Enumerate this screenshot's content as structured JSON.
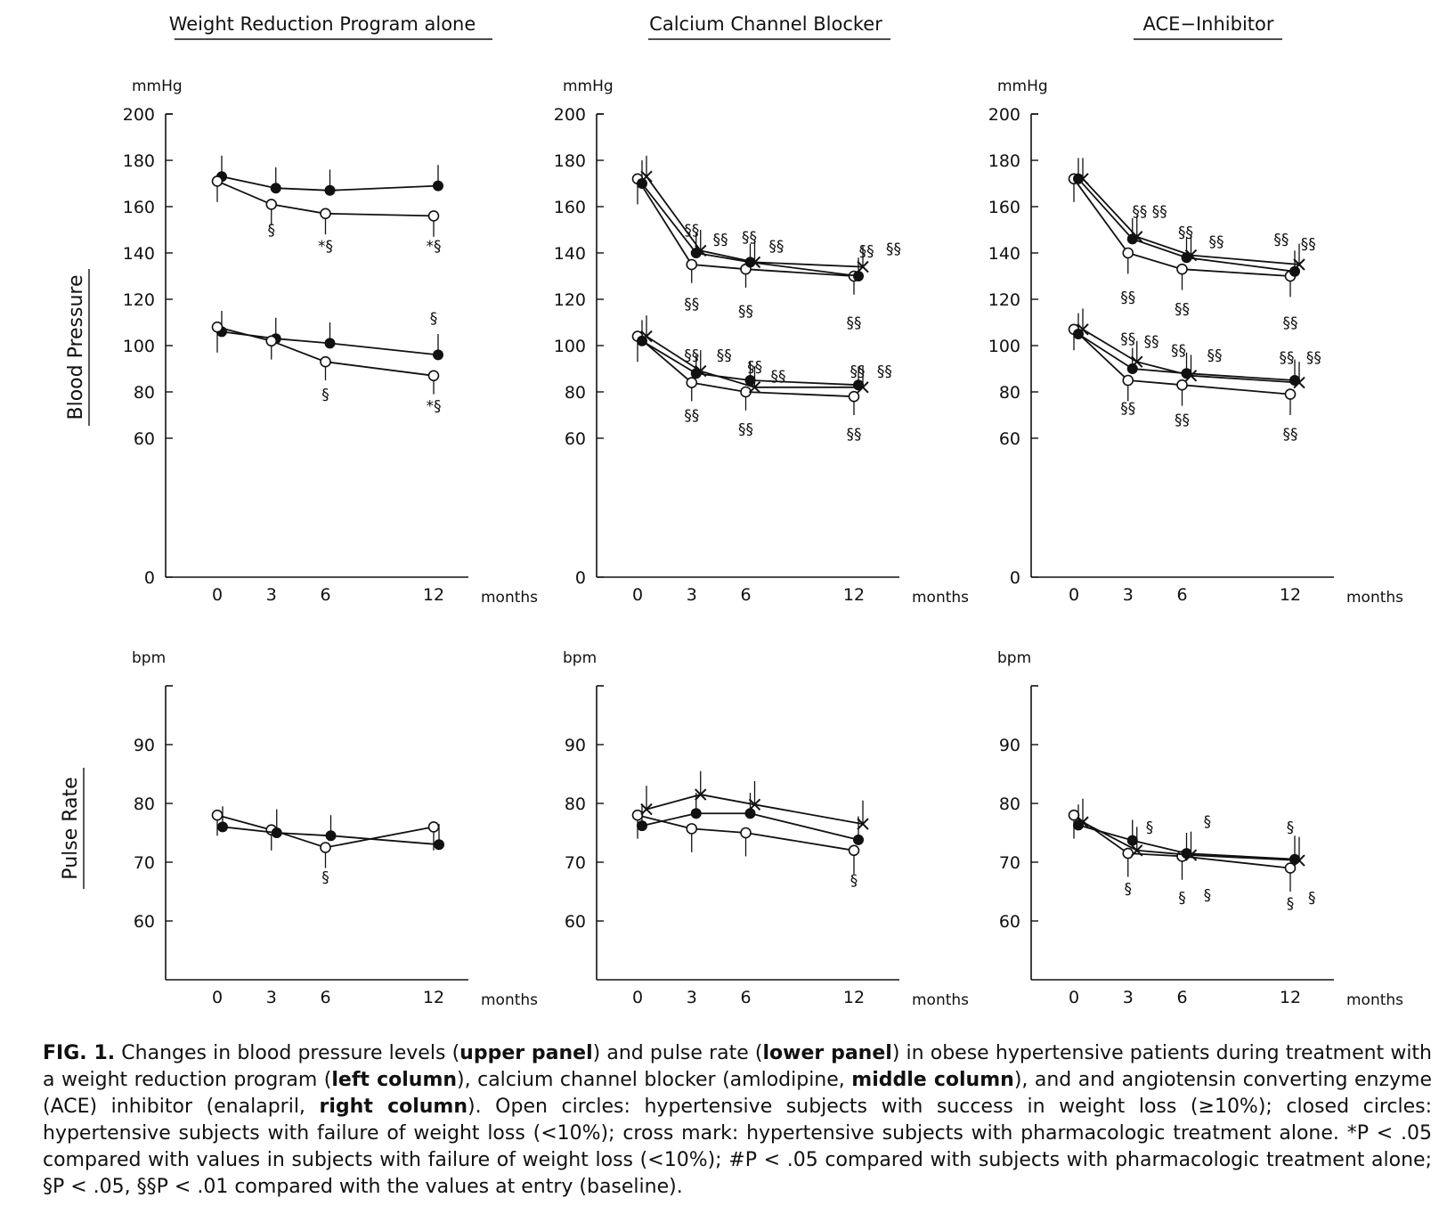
{
  "figure": {
    "column_titles": [
      "Weight Reduction Program alone",
      "Calcium Channel Blocker",
      "ACE−Inhibitor"
    ],
    "row_labels": {
      "upper": "Blood  Pressure",
      "lower": "Pulse  Rate"
    },
    "units": {
      "upper": "mmHg",
      "lower": "bpm"
    },
    "x_unit": "months"
  },
  "caption": {
    "label": "FIG. 1.",
    "s1": " Changes in blood pressure levels (",
    "b1": "upper panel",
    "s2": ") and pulse rate (",
    "b2": "lower panel",
    "s3": ") in obese hypertensive patients during treatment with a weight reduction program (",
    "b3": "left column",
    "s4": "), calcium channel blocker (amlodipine, ",
    "b4": "middle column",
    "s5": "), and and angiotensin converting enzyme (ACE) inhibitor (enalapril, ",
    "b5": "right column",
    "s6": "). Open circles: hypertensive subjects with success in weight loss (≥10%); closed circles: hypertensive subjects with failure of weight loss (<10%); cross mark: hypertensive subjects with pharmacologic treatment alone. *P < .05 compared with values in subjects with failure of weight loss (<10%); #P < .05 compared with subjects with pharmacologic treatment alone; §P < .05, §§P < .01 compared with the values at entry (baseline)."
  },
  "chart_data": [
    {
      "type": "line",
      "panel": "upper",
      "column": "Weight Reduction Program alone",
      "ylabel": "mmHg",
      "xlabel": "months",
      "ylim": [
        0,
        200
      ],
      "yticks": [
        0,
        60,
        80,
        100,
        120,
        140,
        160,
        180,
        200
      ],
      "xticks": [
        0,
        3,
        6,
        12
      ],
      "series": [
        {
          "marker": "closed-circle",
          "x": [
            0,
            3,
            6,
            12
          ],
          "y": [
            173,
            168,
            167,
            169
          ],
          "err": [
            9,
            9,
            9,
            9
          ]
        },
        {
          "marker": "open-circle",
          "x": [
            0,
            3,
            6,
            12
          ],
          "y": [
            171,
            161,
            157,
            156
          ],
          "err": [
            9,
            9,
            9,
            9
          ]
        },
        {
          "marker": "closed-circle",
          "x": [
            0,
            3,
            6,
            12
          ],
          "y": [
            106,
            103,
            101,
            96
          ],
          "err": [
            9,
            9,
            9,
            9
          ]
        },
        {
          "marker": "open-circle",
          "x": [
            0,
            3,
            6,
            12
          ],
          "y": [
            108,
            102,
            93,
            87
          ],
          "err": [
            11,
            8,
            8,
            8
          ]
        }
      ],
      "annotations": [
        {
          "text": "§",
          "x": 3,
          "y": 150
        },
        {
          "text": "*§",
          "x": 6,
          "y": 143
        },
        {
          "text": "*§",
          "x": 12,
          "y": 143
        },
        {
          "text": "§",
          "x": 12,
          "y": 112
        },
        {
          "text": "§",
          "x": 6,
          "y": 79
        },
        {
          "text": "*§",
          "x": 12,
          "y": 74
        }
      ]
    },
    {
      "type": "line",
      "panel": "upper",
      "column": "Calcium Channel Blocker",
      "ylabel": "mmHg",
      "xlabel": "months",
      "ylim": [
        0,
        200
      ],
      "yticks": [
        0,
        60,
        80,
        100,
        120,
        140,
        160,
        180,
        200
      ],
      "xticks": [
        0,
        3,
        6,
        12
      ],
      "series": [
        {
          "marker": "open-circle",
          "x": [
            0,
            3,
            6,
            12
          ],
          "y": [
            172,
            135,
            133,
            130
          ],
          "err": [
            11,
            8,
            8,
            8
          ]
        },
        {
          "marker": "closed-circle",
          "x": [
            0,
            3,
            6,
            12
          ],
          "y": [
            170,
            140,
            136,
            130
          ],
          "err": [
            10,
            9,
            8,
            8
          ]
        },
        {
          "marker": "cross",
          "x": [
            0,
            3,
            6,
            12
          ],
          "y": [
            173,
            141,
            136,
            134
          ],
          "err": [
            9,
            9,
            9,
            9
          ]
        },
        {
          "marker": "open-circle",
          "x": [
            0,
            3,
            6,
            12
          ],
          "y": [
            104,
            84,
            80,
            78
          ],
          "err": [
            11,
            8,
            8,
            8
          ]
        },
        {
          "marker": "closed-circle",
          "x": [
            0,
            3,
            6,
            12
          ],
          "y": [
            102,
            88,
            85,
            83
          ],
          "err": [
            9,
            8,
            8,
            8
          ]
        },
        {
          "marker": "cross",
          "x": [
            0,
            3,
            6,
            12
          ],
          "y": [
            104,
            89,
            82,
            82
          ],
          "err": [
            9,
            9,
            9,
            9
          ]
        }
      ],
      "annotations": [
        {
          "text": "§§",
          "x": 3,
          "y": 150
        },
        {
          "text": "§§",
          "x": 4.6,
          "y": 146
        },
        {
          "text": "§§",
          "x": 6.2,
          "y": 147
        },
        {
          "text": "§§",
          "x": 7.7,
          "y": 143
        },
        {
          "text": "§§",
          "x": 12.7,
          "y": 141
        },
        {
          "text": "§§",
          "x": 14.2,
          "y": 142
        },
        {
          "text": "§§",
          "x": 3,
          "y": 118
        },
        {
          "text": "§§",
          "x": 6,
          "y": 115
        },
        {
          "text": "§§",
          "x": 12,
          "y": 110
        },
        {
          "text": "§§",
          "x": 3,
          "y": 96
        },
        {
          "text": "§§",
          "x": 4.8,
          "y": 96
        },
        {
          "text": "§§",
          "x": 6.5,
          "y": 91
        },
        {
          "text": "§§",
          "x": 7.8,
          "y": 87
        },
        {
          "text": "§§",
          "x": 12.2,
          "y": 89
        },
        {
          "text": "§§",
          "x": 13.7,
          "y": 89
        },
        {
          "text": "§§",
          "x": 3,
          "y": 70
        },
        {
          "text": "§§",
          "x": 6,
          "y": 64
        },
        {
          "text": "§§",
          "x": 12,
          "y": 62
        }
      ]
    },
    {
      "type": "line",
      "panel": "upper",
      "column": "ACE−Inhibitor",
      "ylabel": "mmHg",
      "xlabel": "months",
      "ylim": [
        0,
        200
      ],
      "yticks": [
        0,
        60,
        80,
        100,
        120,
        140,
        160,
        180,
        200
      ],
      "xticks": [
        0,
        3,
        6,
        12
      ],
      "series": [
        {
          "marker": "open-circle",
          "x": [
            0,
            3,
            6,
            12
          ],
          "y": [
            172,
            140,
            133,
            130
          ],
          "err": [
            10,
            9,
            9,
            9
          ]
        },
        {
          "marker": "closed-circle",
          "x": [
            0,
            3,
            6,
            12
          ],
          "y": [
            172,
            146,
            138,
            132
          ],
          "err": [
            9,
            9,
            9,
            9
          ]
        },
        {
          "marker": "cross",
          "x": [
            0,
            3,
            6,
            12
          ],
          "y": [
            172,
            147,
            139,
            135
          ],
          "err": [
            9,
            9,
            9,
            9
          ]
        },
        {
          "marker": "open-circle",
          "x": [
            0,
            3,
            6,
            12
          ],
          "y": [
            107,
            85,
            83,
            79
          ],
          "err": [
            9,
            9,
            9,
            9
          ]
        },
        {
          "marker": "closed-circle",
          "x": [
            0,
            3,
            6,
            12
          ],
          "y": [
            105,
            90,
            88,
            85
          ],
          "err": [
            9,
            9,
            9,
            9
          ]
        },
        {
          "marker": "cross",
          "x": [
            0,
            3,
            6,
            12
          ],
          "y": [
            107,
            93,
            87,
            84
          ],
          "err": [
            9,
            9,
            9,
            9
          ]
        }
      ],
      "annotations": [
        {
          "text": "§§ §§",
          "x": 4.2,
          "y": 158
        },
        {
          "text": "§§",
          "x": 6.2,
          "y": 149
        },
        {
          "text": "§§",
          "x": 7.9,
          "y": 145
        },
        {
          "text": "§§",
          "x": 11.5,
          "y": 146
        },
        {
          "text": "§§",
          "x": 13,
          "y": 144
        },
        {
          "text": "§§",
          "x": 3,
          "y": 121
        },
        {
          "text": "§§",
          "x": 6,
          "y": 116
        },
        {
          "text": "§§",
          "x": 12,
          "y": 110
        },
        {
          "text": "§§",
          "x": 3,
          "y": 103
        },
        {
          "text": "§§",
          "x": 4.3,
          "y": 102
        },
        {
          "text": "§§",
          "x": 5.8,
          "y": 98
        },
        {
          "text": "§§",
          "x": 7.8,
          "y": 96
        },
        {
          "text": "§§",
          "x": 11.8,
          "y": 95
        },
        {
          "text": "§§",
          "x": 13.3,
          "y": 95
        },
        {
          "text": "§§",
          "x": 3,
          "y": 73
        },
        {
          "text": "§§",
          "x": 6,
          "y": 68
        },
        {
          "text": "§§",
          "x": 12,
          "y": 62
        }
      ]
    },
    {
      "type": "line",
      "panel": "lower",
      "column": "Weight Reduction Program alone",
      "ylabel": "bpm",
      "xlabel": "months",
      "ylim": [
        50,
        100
      ],
      "yticks": [
        60,
        70,
        80,
        90
      ],
      "xticks": [
        0,
        3,
        6,
        12
      ],
      "series": [
        {
          "marker": "open-circle",
          "x": [
            0,
            3,
            6,
            12
          ],
          "y": [
            78,
            75.5,
            72.5,
            76
          ],
          "err": [
            3.5,
            3.5,
            3.5,
            4
          ]
        },
        {
          "marker": "closed-circle",
          "x": [
            0,
            3,
            6,
            12
          ],
          "y": [
            76,
            75,
            74.5,
            73
          ],
          "err": [
            3.5,
            4,
            3.5,
            3.5
          ]
        }
      ],
      "annotations": [
        {
          "text": "§",
          "x": 6,
          "y": 67.5
        }
      ]
    },
    {
      "type": "line",
      "panel": "lower",
      "column": "Calcium Channel Blocker",
      "ylabel": "bpm",
      "xlabel": "months",
      "ylim": [
        50,
        100
      ],
      "yticks": [
        60,
        70,
        80,
        90
      ],
      "xticks": [
        0,
        3,
        6,
        12
      ],
      "series": [
        {
          "marker": "open-circle",
          "x": [
            0,
            3,
            6,
            12
          ],
          "y": [
            78,
            75.7,
            75,
            72
          ],
          "err": [
            4,
            4,
            4,
            4
          ]
        },
        {
          "marker": "closed-circle",
          "x": [
            0,
            3,
            6,
            12
          ],
          "y": [
            76.2,
            78.3,
            78.3,
            73.8
          ],
          "err": [
            3.5,
            3.5,
            3.5,
            4
          ]
        },
        {
          "marker": "cross",
          "x": [
            0,
            3,
            6,
            12
          ],
          "y": [
            79,
            81.5,
            79.8,
            76.5
          ],
          "err": [
            4,
            4,
            4,
            4
          ]
        }
      ],
      "annotations": [
        {
          "text": "§",
          "x": 12,
          "y": 67
        }
      ]
    },
    {
      "type": "line",
      "panel": "lower",
      "column": "ACE−Inhibitor",
      "ylabel": "bpm",
      "xlabel": "months",
      "ylim": [
        50,
        100
      ],
      "yticks": [
        60,
        70,
        80,
        90
      ],
      "xticks": [
        0,
        3,
        6,
        12
      ],
      "series": [
        {
          "marker": "open-circle",
          "x": [
            0,
            3,
            6,
            12
          ],
          "y": [
            78,
            71.5,
            71,
            69
          ],
          "err": [
            4,
            4,
            4,
            4
          ]
        },
        {
          "marker": "closed-circle",
          "x": [
            0,
            3,
            6,
            12
          ],
          "y": [
            76.3,
            73.7,
            71.5,
            70.5
          ],
          "err": [
            3.5,
            3.5,
            3.5,
            4
          ]
        },
        {
          "marker": "cross",
          "x": [
            0,
            3,
            6,
            12
          ],
          "y": [
            76.8,
            72,
            71.2,
            70.3
          ],
          "err": [
            4,
            4,
            4,
            4
          ]
        }
      ],
      "annotations": [
        {
          "text": "§",
          "x": 4.2,
          "y": 76
        },
        {
          "text": "§",
          "x": 7.4,
          "y": 77
        },
        {
          "text": "§",
          "x": 12,
          "y": 76
        },
        {
          "text": "§",
          "x": 3,
          "y": 65.5
        },
        {
          "text": "§",
          "x": 6,
          "y": 64
        },
        {
          "text": "§",
          "x": 7.4,
          "y": 64.5
        },
        {
          "text": "§",
          "x": 12,
          "y": 63
        },
        {
          "text": "§",
          "x": 13.2,
          "y": 64
        }
      ]
    }
  ]
}
